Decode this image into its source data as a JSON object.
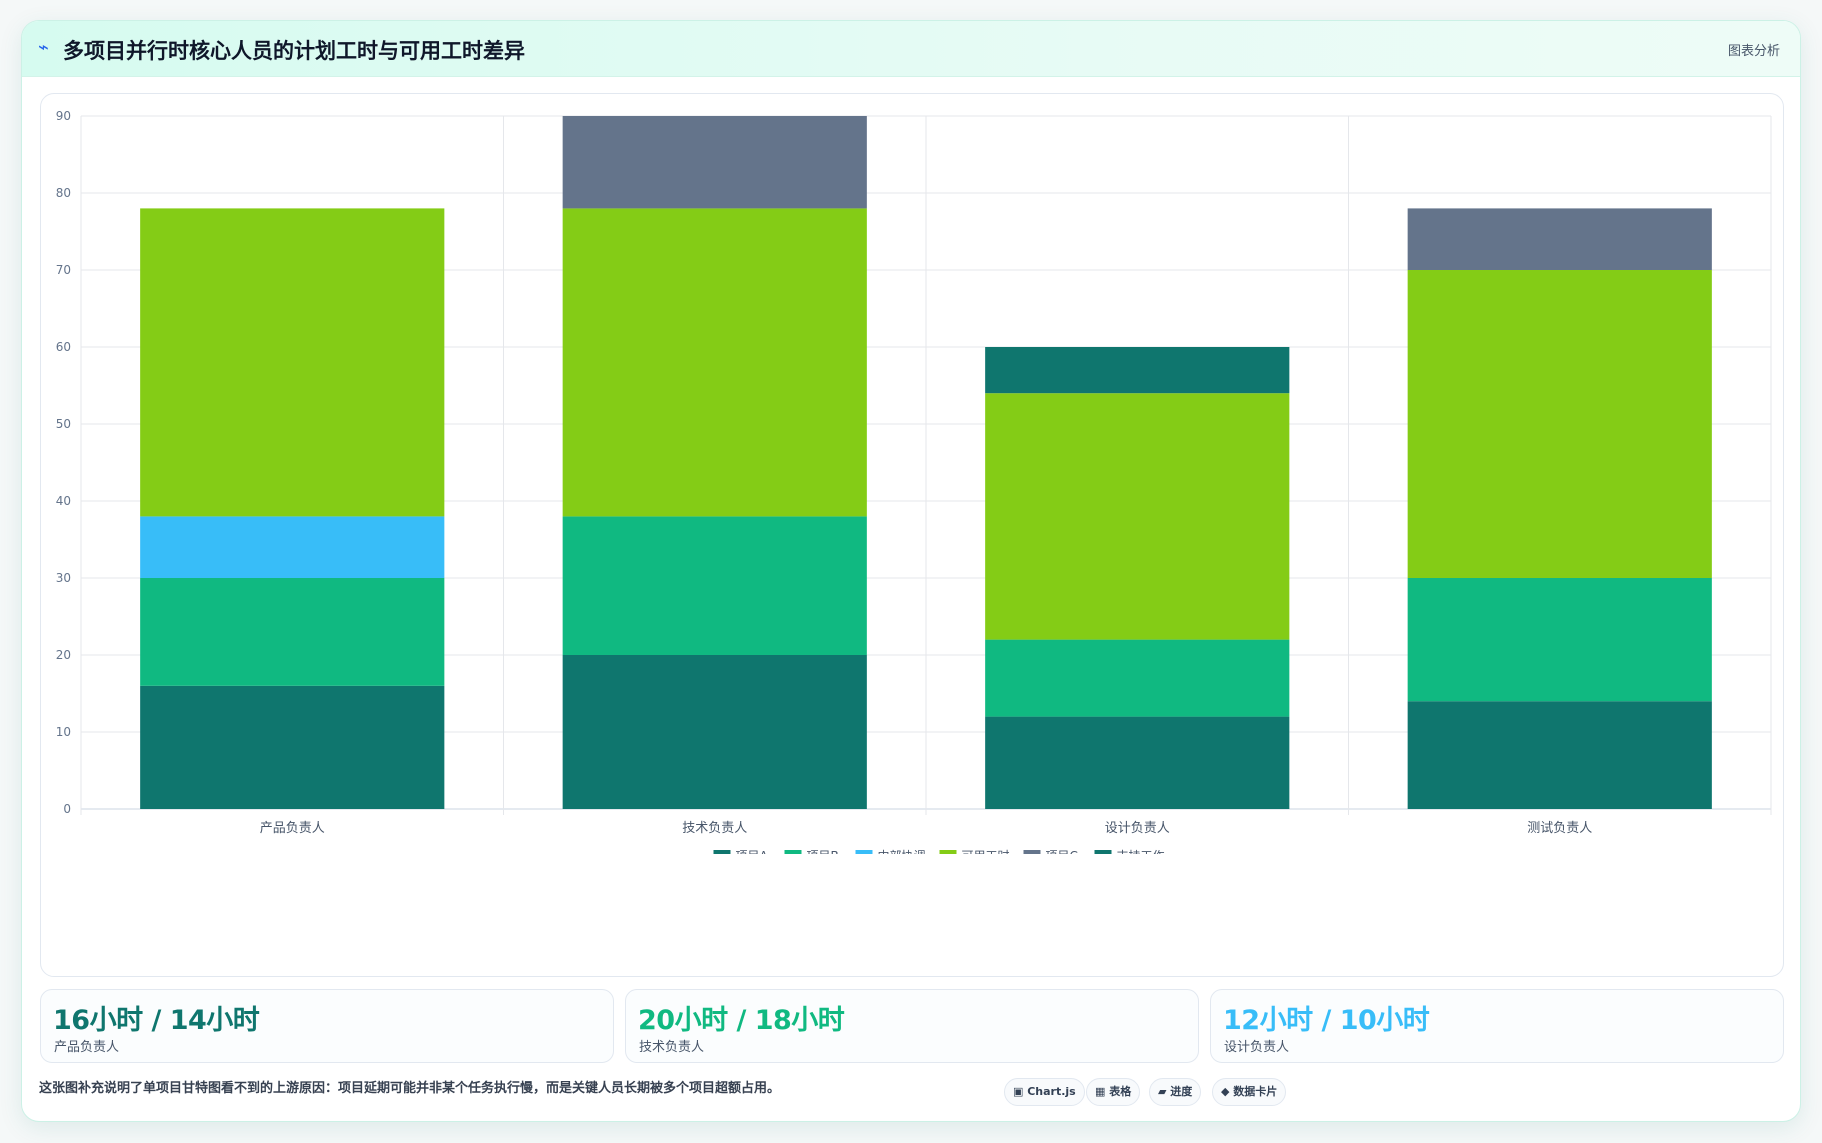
{
  "header": {
    "icon": "trend-icon",
    "title": "多项目并行时核心人员的计划工时与可用工时差异",
    "right_label": "图表分析"
  },
  "chart_data": {
    "type": "bar",
    "stacked": true,
    "categories": [
      "产品负责人",
      "技术负责人",
      "设计负责人",
      "测试负责人"
    ],
    "ylim": [
      0,
      90
    ],
    "yticks": [
      0,
      10,
      20,
      30,
      40,
      50,
      60,
      70,
      80,
      90
    ],
    "grid": true,
    "legend_position": "bottom",
    "series": [
      {
        "name": "项目A",
        "color": "#0f766e",
        "values": [
          16,
          20,
          12,
          14
        ]
      },
      {
        "name": "项目B",
        "color": "#10b981",
        "values": [
          14,
          18,
          10,
          16
        ]
      },
      {
        "name": "内部协调",
        "color": "#38bdf8",
        "values": [
          8,
          0,
          0,
          0
        ]
      },
      {
        "name": "可用工时",
        "color": "#84cc16",
        "values": [
          40,
          40,
          32,
          40
        ]
      },
      {
        "name": "项目C",
        "color": "#64748b",
        "values": [
          0,
          12,
          0,
          8
        ]
      },
      {
        "name": "支持工作",
        "color": "#0f766e",
        "values": [
          0,
          0,
          6,
          0
        ]
      }
    ]
  },
  "stats": [
    {
      "value": "16小时 / 14小时",
      "label": "产品负责人",
      "color": "#0f766e"
    },
    {
      "value": "20小时 / 18小时",
      "label": "技术负责人",
      "color": "#10b981"
    },
    {
      "value": "12小时 / 10小时",
      "label": "设计负责人",
      "color": "#38bdf8"
    }
  ],
  "footer": {
    "note": "这张图补充说明了单项目甘特图看不到的上游原因：项目延期可能并非某个任务执行慢，而是关键人员长期被多个项目超额占用。",
    "chips": [
      "▣ Chart.js",
      "▦ 表格",
      "▰ 进度",
      "◆ 数据卡片"
    ]
  }
}
